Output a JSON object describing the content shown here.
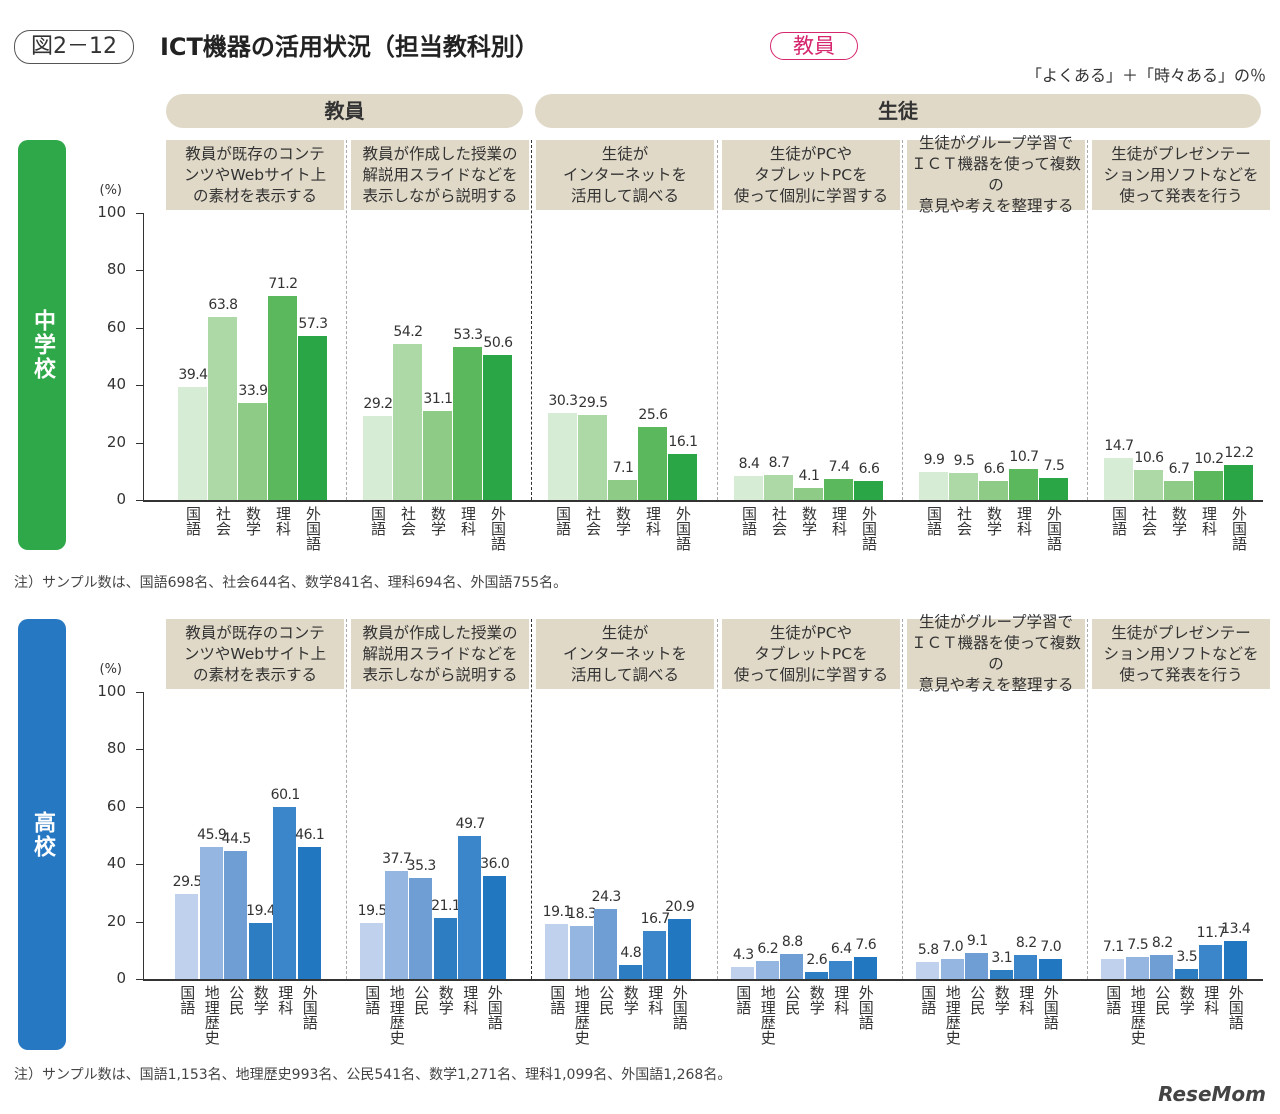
{
  "figure_no": "図2－12",
  "title": "ICT機器の活用状況（担当教科別）",
  "badges": [
    {
      "label": "中学校",
      "color": "#2fa84a"
    },
    {
      "label": "高　校",
      "color": "#2778c2"
    },
    {
      "label": "教員",
      "color": "#d6266e"
    }
  ],
  "unit_note": "「よくある」＋「時々ある」の％",
  "groups": [
    "教員",
    "生徒"
  ],
  "logo": "ReseMom",
  "chart_data": [
    {
      "type": "bar",
      "section": "中学校",
      "ylabel": "(%)",
      "ylim": [
        0,
        100
      ],
      "yticks": [
        0,
        20,
        40,
        60,
        80,
        100
      ],
      "categories": [
        "国語",
        "社会",
        "数学",
        "理科",
        "外国語"
      ],
      "colors": [
        "#d7ecd4",
        "#acd9a6",
        "#8ecb87",
        "#5cb85d",
        "#2ba646"
      ],
      "panels": [
        {
          "label": "教員が既存のコンテ\nンツやWebサイト上\nの素材を表示する",
          "values": [
            39.4,
            63.8,
            33.9,
            71.2,
            57.3
          ]
        },
        {
          "label": "教員が作成した授業の\n解説用スライドなどを\n表示しながら説明する",
          "values": [
            29.2,
            54.2,
            31.1,
            53.3,
            50.6
          ]
        },
        {
          "label": "生徒が\nインターネットを\n活用して調べる",
          "values": [
            30.3,
            29.5,
            7.1,
            25.6,
            16.1
          ]
        },
        {
          "label": "生徒がPCや\nタブレットPCを\n使って個別に学習する",
          "values": [
            8.4,
            8.7,
            4.1,
            7.4,
            6.6
          ]
        },
        {
          "label": "生徒がグループ学習で\nＩＣＴ機器を使って複数の\n意見や考えを整理する",
          "values": [
            9.9,
            9.5,
            6.6,
            10.7,
            7.5
          ]
        },
        {
          "label": "生徒がプレゼンテー\nション用ソフトなどを\n使って発表を行う",
          "values": [
            14.7,
            10.6,
            6.7,
            10.2,
            12.2
          ]
        }
      ],
      "note": "注）サンプル数は、国語698名、社会644名、数学841名、理科694名、外国語755名。"
    },
    {
      "type": "bar",
      "section": "高校",
      "ylabel": "(%)",
      "ylim": [
        0,
        100
      ],
      "yticks": [
        0,
        20,
        40,
        60,
        80,
        100
      ],
      "categories": [
        "国語",
        "地理歴史",
        "公民",
        "数学",
        "理科",
        "外国語"
      ],
      "colors": [
        "#bfd1ec",
        "#95b6e0",
        "#6e9ed3",
        "#2d7dc3",
        "#3b85ca",
        "#2178c0"
      ],
      "panels": [
        {
          "label": "教員が既存のコンテ\nンツやWebサイト上\nの素材を表示する",
          "values": [
            29.5,
            45.9,
            44.5,
            19.4,
            60.1,
            46.1
          ]
        },
        {
          "label": "教員が作成した授業の\n解説用スライドなどを\n表示しながら説明する",
          "values": [
            19.5,
            37.7,
            35.3,
            21.1,
            49.7,
            36.0
          ]
        },
        {
          "label": "生徒が\nインターネットを\n活用して調べる",
          "values": [
            19.1,
            18.3,
            24.3,
            4.8,
            16.7,
            20.9
          ]
        },
        {
          "label": "生徒がPCや\nタブレットPCを\n使って個別に学習する",
          "values": [
            4.3,
            6.2,
            8.8,
            2.6,
            6.4,
            7.6
          ]
        },
        {
          "label": "生徒がグループ学習で\nＩＣＴ機器を使って複数の\n意見や考えを整理する",
          "values": [
            5.8,
            7.0,
            9.1,
            3.1,
            8.2,
            7.0
          ]
        },
        {
          "label": "生徒がプレゼンテー\nション用ソフトなどを\n使って発表を行う",
          "values": [
            7.1,
            7.5,
            8.2,
            3.5,
            11.7,
            13.4
          ]
        }
      ],
      "note": "注）サンプル数は、国語1,153名、地理歴史993名、公民541名、数学1,271名、理科1,099名、外国語1,268名。"
    }
  ]
}
